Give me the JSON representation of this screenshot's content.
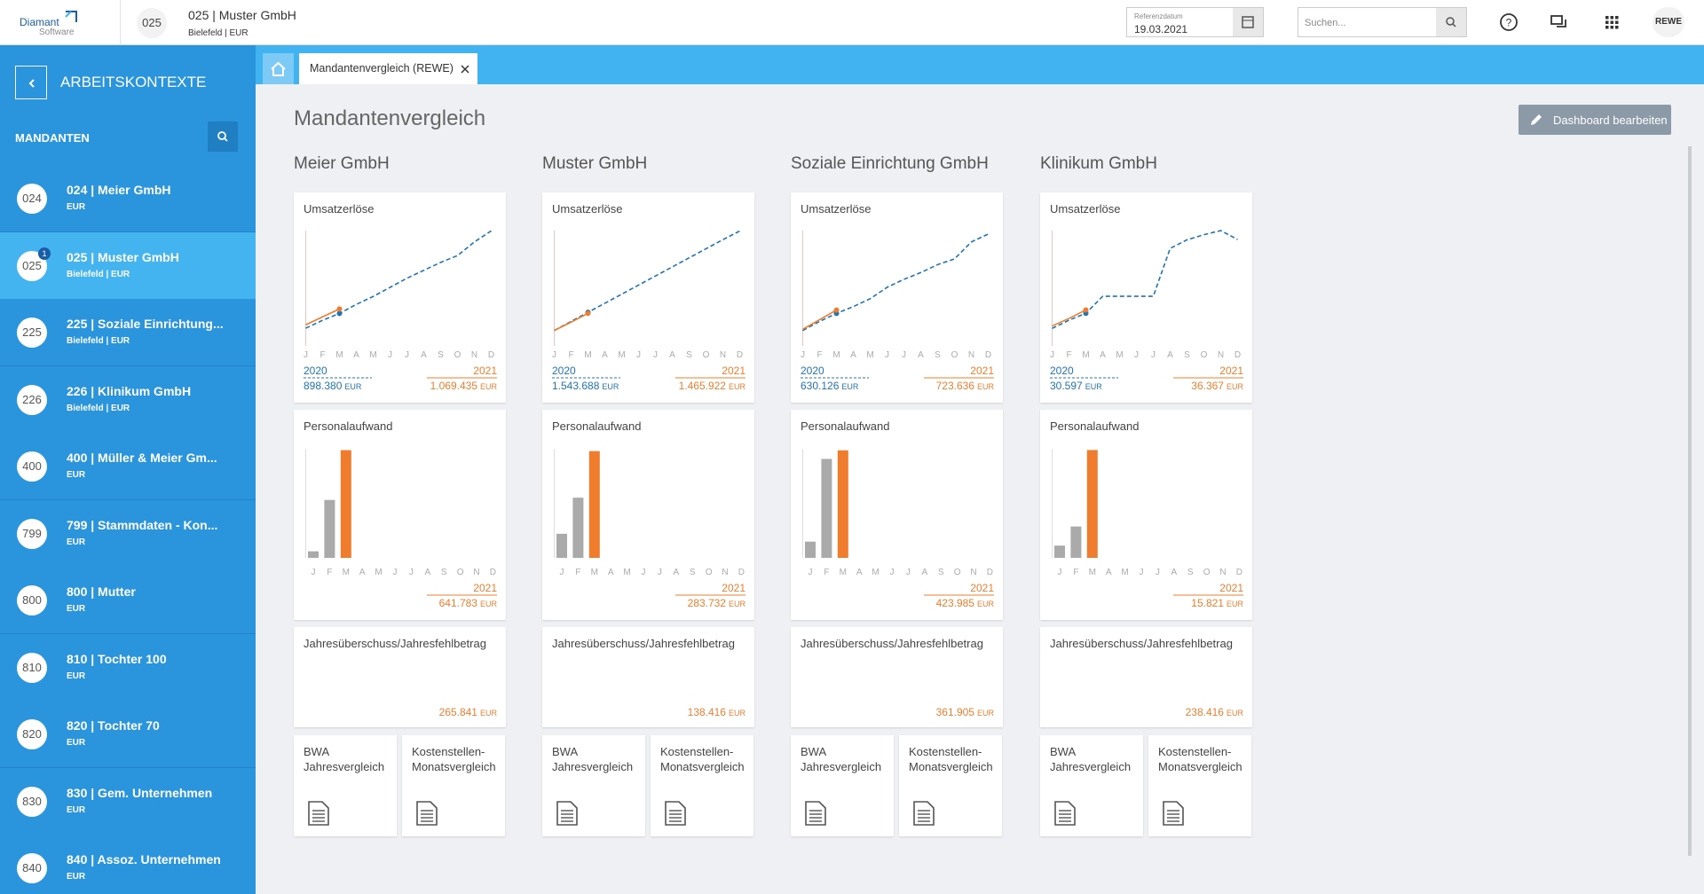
{
  "topbar": {
    "logo": "Diamant",
    "logo_sub": "Software",
    "client_no": "025",
    "client_name": "025 | Muster GmbH",
    "client_sub": "Bielefeld | EUR",
    "date_label": "Referenzdatum",
    "date_value": "19.03.2021",
    "search_placeholder": "Suchen...",
    "user": "REWE"
  },
  "sidebar": {
    "title": "ARBEITSKONTEXTE",
    "section": "MANDANTEN",
    "selected": 1,
    "items": [
      {
        "no": "024",
        "name": "024 | Meier GmbH",
        "sub": "EUR"
      },
      {
        "no": "025",
        "name": "025 | Muster GmbH",
        "sub": "Bielefeld | EUR",
        "badge": "1"
      },
      {
        "no": "225",
        "name": "225 | Soziale Einrichtung...",
        "sub": "Bielefeld | EUR"
      },
      {
        "no": "226",
        "name": "226 | Klinikum GmbH",
        "sub": "Bielefeld | EUR"
      },
      {
        "no": "400",
        "name": "400 | Müller & Meier Gm...",
        "sub": "EUR"
      },
      {
        "no": "799",
        "name": "799 | Stammdaten - Kon...",
        "sub": "EUR"
      },
      {
        "no": "800",
        "name": "800 | Mutter",
        "sub": "EUR"
      },
      {
        "no": "810",
        "name": "810 | Tochter 100",
        "sub": "EUR"
      },
      {
        "no": "820",
        "name": "820 | Tochter 70",
        "sub": "EUR"
      },
      {
        "no": "830",
        "name": "830 | Gem. Unternehmen",
        "sub": "EUR"
      },
      {
        "no": "840",
        "name": "840 | Assoz. Unternehmen",
        "sub": "EUR"
      }
    ]
  },
  "tab": {
    "label": "Mandantenvergleich (REWE)"
  },
  "page": {
    "title": "Mandantenvergleich",
    "button": "Dashboard bearbeiten"
  },
  "tiles": [
    [
      "BWA",
      "Jahresvergleich"
    ],
    [
      "Kostenstellen-",
      "Monatsvergleich"
    ]
  ],
  "companies": [
    {
      "name": "Meier GmbH",
      "revenue": {
        "type": "line",
        "title": "Umsatzerlöse",
        "categories": [
          "J",
          "F",
          "M",
          "A",
          "M",
          "J",
          "J",
          "A",
          "S",
          "O",
          "N",
          "D"
        ],
        "ylim": [
          0,
          900000
        ],
        "unit": "EUR",
        "series": [
          {
            "name": "2020",
            "color": "#1f74b5",
            "dash": true,
            "total": "898.380",
            "values": [
              126000,
              189000,
              243000,
              315000,
              378000,
              450000,
              522000,
              585000,
              648000,
              702000,
              810000,
              898000
            ]
          },
          {
            "name": "2021",
            "color": "#f07d2d",
            "total": "1.069.435",
            "values": [
              153000,
              216000,
              279000,
              null,
              null,
              null,
              null,
              null,
              null,
              null,
              null,
              null
            ]
          }
        ]
      },
      "personnel": {
        "type": "bar",
        "title": "Personalaufwand",
        "categories": [
          "J",
          "F",
          "M",
          "A",
          "M",
          "J",
          "J",
          "A",
          "S",
          "O",
          "N",
          "D"
        ],
        "ylim": [
          0,
          650000
        ],
        "unit": "EUR",
        "series": [
          {
            "name": "2021",
            "color": "#f07d2d",
            "past_color": "#aaaaaa",
            "total": "641.783",
            "values": [
              39000,
              345000,
              641783,
              null,
              null,
              null,
              null,
              null,
              null,
              null,
              null,
              null
            ]
          }
        ]
      },
      "result": {
        "title": "Jahresüberschuss/Jahresfehlbetrag",
        "value": "265.841",
        "unit": "EUR"
      }
    },
    {
      "name": "Muster GmbH",
      "revenue": {
        "type": "line",
        "title": "Umsatzerlöse",
        "categories": [
          "J",
          "F",
          "M",
          "A",
          "M",
          "J",
          "J",
          "A",
          "S",
          "O",
          "N",
          "D"
        ],
        "ylim": [
          0,
          1550000
        ],
        "unit": "EUR",
        "series": [
          {
            "name": "2020",
            "color": "#1f74b5",
            "dash": true,
            "total": "1.543.688",
            "values": [
              186000,
              310000,
              434000,
              558000,
              682000,
              806000,
              930000,
              1054000,
              1178000,
              1302000,
              1426000,
              1544000
            ]
          },
          {
            "name": "2021",
            "color": "#f07d2d",
            "total": "1.465.922",
            "values": [
              186000,
              300000,
              420000,
              null,
              null,
              null,
              null,
              null,
              null,
              null,
              null,
              null
            ]
          }
        ]
      },
      "personnel": {
        "type": "bar",
        "title": "Personalaufwand",
        "categories": [
          "J",
          "F",
          "M",
          "A",
          "M",
          "J",
          "J",
          "A",
          "S",
          "O",
          "N",
          "D"
        ],
        "ylim": [
          0,
          290000
        ],
        "unit": "EUR",
        "series": [
          {
            "name": "2021",
            "color": "#f07d2d",
            "past_color": "#aaaaaa",
            "total": "283.732",
            "values": [
              64000,
              160000,
              283732,
              null,
              null,
              null,
              null,
              null,
              null,
              null,
              null,
              null
            ]
          }
        ]
      },
      "result": {
        "title": "Jahresüberschuss/Jahresfehlbetrag",
        "value": "138.416",
        "unit": "EUR"
      }
    },
    {
      "name": "Soziale Einrichtung GmbH",
      "revenue": {
        "type": "line",
        "title": "Umsatzerlöse",
        "categories": [
          "J",
          "F",
          "M",
          "A",
          "M",
          "J",
          "J",
          "A",
          "S",
          "O",
          "N",
          "D"
        ],
        "ylim": [
          0,
          650000
        ],
        "unit": "EUR",
        "series": [
          {
            "name": "2020",
            "color": "#1f74b5",
            "dash": true,
            "total": "630.126",
            "values": [
              78000,
              130000,
              176000,
              215000,
              260000,
              325000,
              371000,
              410000,
              455000,
              488000,
              585000,
              630000
            ]
          },
          {
            "name": "2021",
            "color": "#f07d2d",
            "total": "723.636",
            "values": [
              85000,
              140000,
              195000,
              null,
              null,
              null,
              null,
              null,
              null,
              null,
              null,
              null
            ]
          }
        ]
      },
      "personnel": {
        "type": "bar",
        "title": "Personalaufwand",
        "categories": [
          "J",
          "F",
          "M",
          "A",
          "M",
          "J",
          "J",
          "A",
          "S",
          "O",
          "N",
          "D"
        ],
        "ylim": [
          0,
          430000
        ],
        "unit": "EUR",
        "series": [
          {
            "name": "2021",
            "color": "#f07d2d",
            "past_color": "#aaaaaa",
            "total": "423.985",
            "values": [
              64000,
              390000,
              423985,
              null,
              null,
              null,
              null,
              null,
              null,
              null,
              null,
              null
            ]
          }
        ]
      },
      "result": {
        "title": "Jahresüberschuss/Jahresfehlbetrag",
        "value": "361.905",
        "unit": "EUR"
      }
    },
    {
      "name": "Klinikum GmbH",
      "revenue": {
        "type": "line",
        "title": "Umsatzerlöse",
        "categories": [
          "J",
          "F",
          "M",
          "A",
          "M",
          "J",
          "J",
          "A",
          "S",
          "O",
          "N",
          "D"
        ],
        "ylim": [
          0,
          33200
        ],
        "unit": "EUR",
        "series": [
          {
            "name": "2020",
            "color": "#1f74b5",
            "dash": true,
            "total": "30.597",
            "values": [
              4600,
              7000,
              9000,
              14000,
              14000,
              14000,
              14000,
              28000,
              30500,
              32000,
              33200,
              30600
            ]
          },
          {
            "name": "2021",
            "color": "#f07d2d",
            "total": "36.367",
            "values": [
              5300,
              7500,
              10000,
              null,
              null,
              null,
              null,
              null,
              null,
              null,
              null,
              null
            ]
          }
        ]
      },
      "personnel": {
        "type": "bar",
        "title": "Personalaufwand",
        "categories": [
          "J",
          "F",
          "M",
          "A",
          "M",
          "J",
          "J",
          "A",
          "S",
          "O",
          "N",
          "D"
        ],
        "ylim": [
          0,
          16000
        ],
        "unit": "EUR",
        "series": [
          {
            "name": "2021",
            "color": "#f07d2d",
            "past_color": "#aaaaaa",
            "total": "15.821",
            "values": [
              1800,
              4600,
              15821,
              null,
              null,
              null,
              null,
              null,
              null,
              null,
              null,
              null
            ]
          }
        ]
      },
      "result": {
        "title": "Jahresüberschuss/Jahresfehlbetrag",
        "value": "238.416",
        "unit": "EUR"
      }
    }
  ]
}
